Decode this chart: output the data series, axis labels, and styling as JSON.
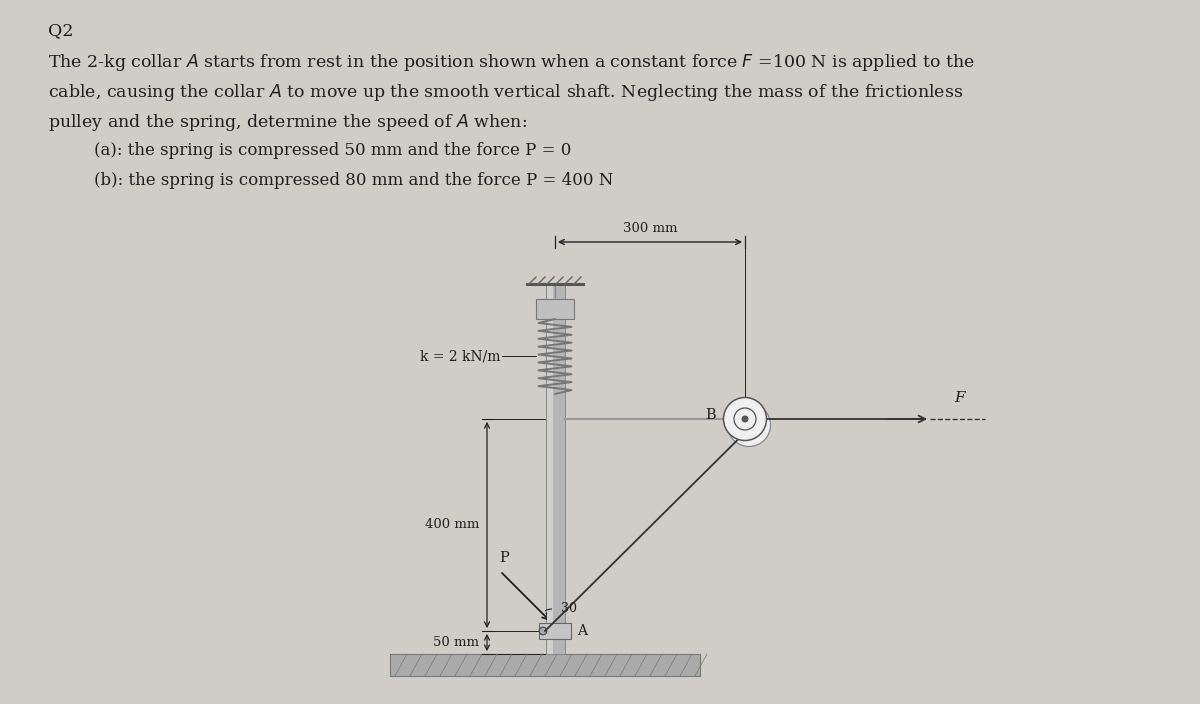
{
  "bg_color": "#d0cdc6",
  "text_color": "#1e1e1e",
  "title": "Q2",
  "line1": "The 2-kg collar $A$ starts from rest in the position shown when a constant force $F$ =100 N is applied to the",
  "line2": "cable, causing the collar $A$ to move up the smooth vertical shaft. Neglecting the mass of the frictionless",
  "line3": "pulley and the spring, determine the speed of $A$ when:",
  "line4a": "    (a): the spring is compressed 50 mm and the force P = 0",
  "line4b": "    (b): the spring is compressed 80 mm and the force P = 400 N",
  "label_300": "300 mm",
  "label_400": "400 mm",
  "label_50": "50 mm",
  "label_k": "k = 2 kN/m",
  "label_P": "P",
  "label_30": "30",
  "label_B": "B",
  "label_F": "F",
  "label_A": "A",
  "shaft_color": "#b5b5b5",
  "shaft_edge": "#888888",
  "spring_color": "#777777",
  "ground_color": "#aaaaaa",
  "ground_edge": "#777777",
  "cable_color": "#333333",
  "dim_color": "#222222",
  "pulley_face": "#f0f0f0",
  "pulley_edge": "#555555",
  "cap_color": "#c0c0c0",
  "collar_color": "#c5c5c5"
}
